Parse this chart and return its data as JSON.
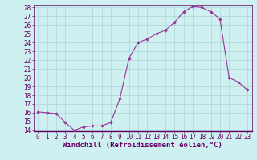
{
  "x": [
    0,
    1,
    2,
    3,
    4,
    5,
    6,
    7,
    8,
    9,
    10,
    11,
    12,
    13,
    14,
    15,
    16,
    17,
    18,
    19,
    20,
    21,
    22,
    23
  ],
  "y": [
    16.1,
    16.0,
    15.9,
    14.9,
    14.0,
    14.4,
    14.5,
    14.5,
    14.9,
    17.6,
    22.2,
    24.0,
    24.4,
    25.0,
    25.4,
    26.3,
    27.5,
    28.1,
    28.0,
    27.5,
    26.7,
    20.0,
    19.5,
    18.6
  ],
  "line_color": "#993399",
  "marker_color": "#993399",
  "bg_color": "#cff0f0",
  "grid_color": "#b0dada",
  "xlabel": "Windchill (Refroidissement éolien,°C)",
  "ylim": [
    14,
    28
  ],
  "xlim": [
    -0.5,
    23.5
  ],
  "yticks": [
    14,
    15,
    16,
    17,
    18,
    19,
    20,
    21,
    22,
    23,
    24,
    25,
    26,
    27,
    28
  ],
  "xticks": [
    0,
    1,
    2,
    3,
    4,
    5,
    6,
    7,
    8,
    9,
    10,
    11,
    12,
    13,
    14,
    15,
    16,
    17,
    18,
    19,
    20,
    21,
    22,
    23
  ],
  "tick_fontsize": 5.5,
  "xlabel_fontsize": 6.5,
  "title_color": "#660066"
}
